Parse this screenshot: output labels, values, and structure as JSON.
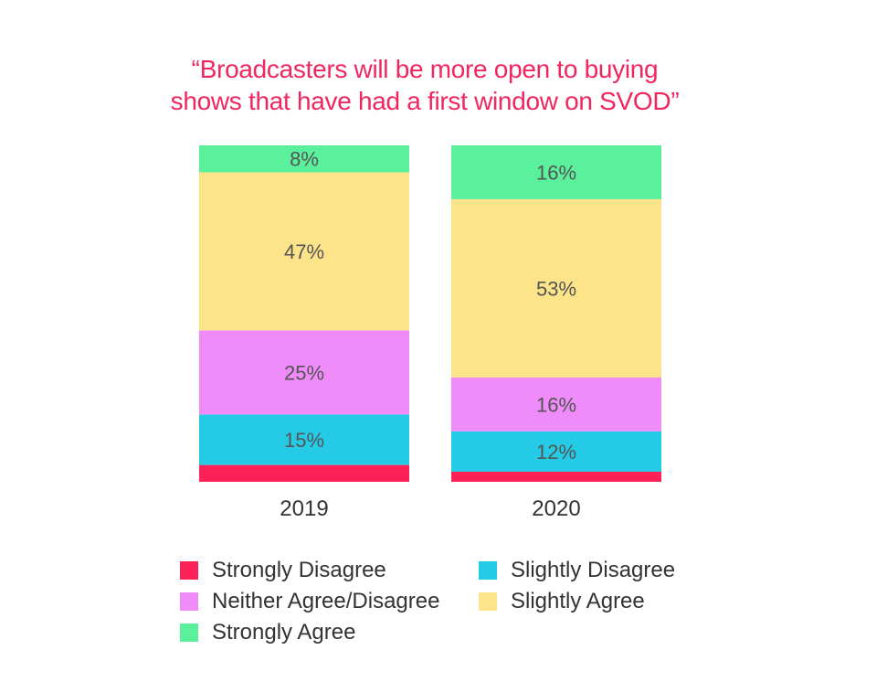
{
  "chart_data": {
    "type": "bar",
    "stacked": true,
    "title": "“Broadcasters will be more open to buying shows that have had a first window on SVOD”",
    "title_lines": [
      "“Broadcasters will be more open to buying",
      "shows that have had a first window on SVOD”"
    ],
    "xlabel": "",
    "ylabel": "",
    "ylim": [
      0,
      100
    ],
    "categories": [
      "2019",
      "2020"
    ],
    "series": [
      {
        "name": "Strongly Disagree",
        "color": "#fc2156",
        "values": [
          5,
          3
        ],
        "labels": [
          "",
          ""
        ]
      },
      {
        "name": "Slightly Disagree",
        "color": "#25cbe6",
        "values": [
          15,
          12
        ],
        "labels": [
          "15%",
          "12%"
        ]
      },
      {
        "name": "Neither Agree/Disagree",
        "color": "#f08bfa",
        "values": [
          25,
          16
        ],
        "labels": [
          "25%",
          "16%"
        ]
      },
      {
        "name": "Slightly Agree",
        "color": "#fde48b",
        "values": [
          47,
          53
        ],
        "labels": [
          "47%",
          "53%"
        ]
      },
      {
        "name": "Strongly Agree",
        "color": "#5bf09c",
        "values": [
          8,
          16
        ],
        "labels": [
          "8%",
          "16%"
        ]
      }
    ],
    "legend_position": "bottom",
    "grid": false
  }
}
